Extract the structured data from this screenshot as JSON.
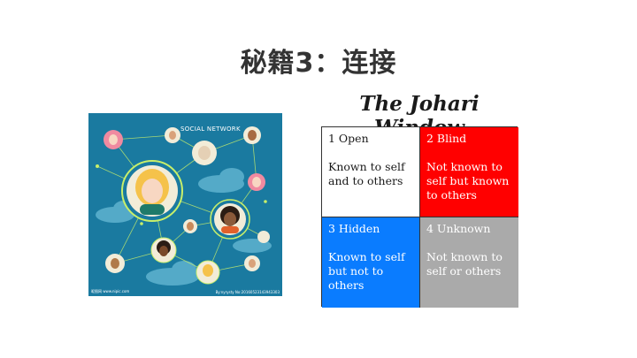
{
  "slide": {
    "title": "秘籍3：连接"
  },
  "illustration": {
    "label": "SOCIAL NETWORK",
    "footer_left": "昵图网 www.nipic.com",
    "footer_right": "By:nyrysty No:20160523143943303"
  },
  "johari": {
    "title": "The Johari Window",
    "cells": [
      {
        "heading": "1  Open",
        "body": "Known to self and to others",
        "color": "#ffffff"
      },
      {
        "heading": "2  Blind",
        "body": "Not known to self but known to others",
        "color": "#ff0000"
      },
      {
        "heading": "3  Hidden",
        "body": "Known to self but not to others",
        "color": "#0a7cff"
      },
      {
        "heading": "4  Unknown",
        "body": "Not known to self or others",
        "color": "#aaaaaa"
      }
    ]
  }
}
